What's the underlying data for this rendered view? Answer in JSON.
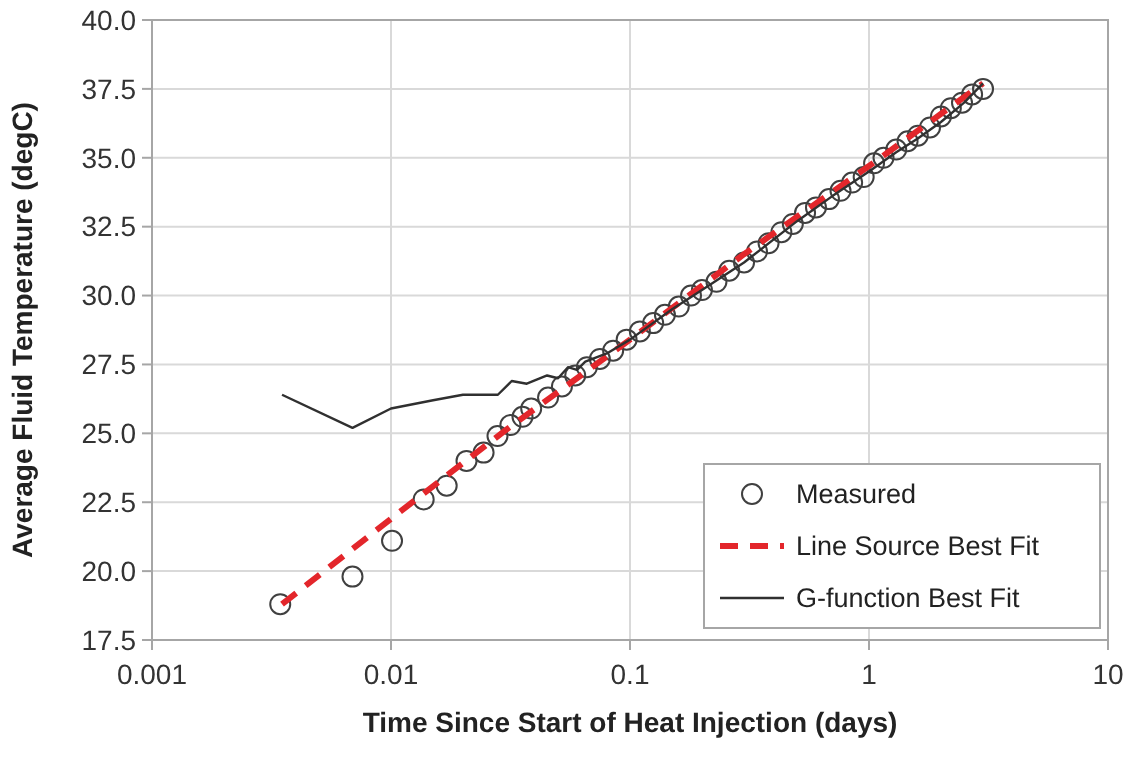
{
  "chart_data": {
    "type": "scatter",
    "xlabel": "Time Since Start of Heat Injection (days)",
    "ylabel": "Average Fluid Temperature (degC)",
    "log": "x",
    "grid": true,
    "legend": "bottom right",
    "xlim": [
      0.001,
      10
    ],
    "xticks": [
      0.001,
      0.01,
      0.1,
      1,
      10
    ],
    "ylim": [
      17.5,
      40
    ],
    "yticks": [
      17.5,
      {
        "value": 20,
        "label": "20.0"
      },
      22.5,
      {
        "value": 25,
        "label": "25.0"
      },
      27.5,
      {
        "value": 30,
        "label": "30.0"
      },
      32.5,
      {
        "value": 35,
        "label": "35.0"
      },
      37.5,
      {
        "value": 40,
        "label": "40.0"
      }
    ],
    "series": [
      {
        "name": "Measured",
        "marker": "circle",
        "color": "#404040",
        "x": [
          0.00344,
          0.0069,
          0.0101,
          0.0137,
          0.0171,
          0.0207,
          0.0244,
          0.0279,
          0.0316,
          0.0355,
          0.0386,
          0.0454,
          0.0519,
          0.059,
          0.066,
          0.0748,
          0.085,
          0.0968,
          0.11,
          0.125,
          0.14,
          0.16,
          0.18,
          0.2,
          0.23,
          0.26,
          0.3,
          0.34,
          0.38,
          0.43,
          0.48,
          0.54,
          0.6,
          0.68,
          0.76,
          0.85,
          0.95,
          1.05,
          1.15,
          1.3,
          1.45,
          1.6,
          1.8,
          2.0,
          2.2,
          2.45,
          2.7,
          3.0
        ],
        "values": [
          18.8,
          19.8,
          21.1,
          22.6,
          23.1,
          24.0,
          24.3,
          24.9,
          25.3,
          25.6,
          25.9,
          26.3,
          26.7,
          27.1,
          27.4,
          27.7,
          28.0,
          28.4,
          28.7,
          29.0,
          29.3,
          29.6,
          30.0,
          30.2,
          30.5,
          30.9,
          31.2,
          31.6,
          31.9,
          32.3,
          32.6,
          33.0,
          33.2,
          33.5,
          33.8,
          34.1,
          34.3,
          34.8,
          35.0,
          35.3,
          35.6,
          35.8,
          36.1,
          36.5,
          36.8,
          37.0,
          37.3,
          37.5
        ]
      },
      {
        "name": "Line Source Best Fit",
        "type": "line",
        "line_style": "dashed",
        "color": "#e3262b",
        "x": [
          0.0035,
          0.01,
          0.03,
          0.1,
          0.3,
          1,
          3
        ],
        "values": [
          18.8,
          21.9,
          25.1,
          28.4,
          31.5,
          34.7,
          37.7
        ]
      },
      {
        "name": "G-function Best Fit",
        "type": "line",
        "line_style": "solid",
        "color": "#303030",
        "x": [
          0.0035,
          0.0069,
          0.01,
          0.015,
          0.02,
          0.028,
          0.032,
          0.037,
          0.045,
          0.05,
          0.055,
          0.06,
          0.065,
          0.08,
          0.1,
          0.15,
          0.2,
          0.3,
          0.5,
          0.7,
          1.0,
          1.3,
          1.6,
          2.0,
          2.5,
          3.0
        ],
        "values": [
          26.4,
          25.2,
          25.9,
          26.2,
          26.4,
          26.4,
          26.9,
          26.8,
          27.1,
          27.0,
          27.4,
          27.3,
          27.6,
          27.9,
          28.4,
          29.5,
          30.2,
          31.2,
          32.7,
          33.6,
          34.5,
          35.2,
          35.7,
          36.3,
          37.0,
          37.7
        ]
      }
    ]
  }
}
